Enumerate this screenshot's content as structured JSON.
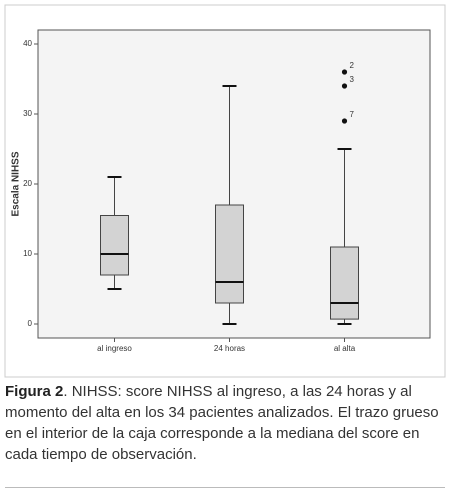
{
  "chart_data": {
    "type": "box",
    "y_label": "Escala NIHSS",
    "categories": [
      "al ingreso",
      "24 horas",
      "al alta"
    ],
    "boxes": [
      {
        "min": 5,
        "q1": 7,
        "median": 10,
        "q3": 15.5,
        "max": 21
      },
      {
        "min": 0,
        "q1": 3,
        "median": 6,
        "q3": 17,
        "max": 34
      },
      {
        "min": 0,
        "q1": 0.7,
        "median": 3,
        "q3": 11,
        "max": 25
      }
    ],
    "outliers": [
      {
        "category": "al alta",
        "value": 36,
        "label": "2"
      },
      {
        "category": "al alta",
        "value": 34,
        "label": "3"
      },
      {
        "category": "al alta",
        "value": 29,
        "label": "7"
      }
    ],
    "box_color": "#d3d3d3",
    "ylim": [
      -2,
      42
    ],
    "yticks": [
      0,
      10,
      20,
      30,
      40
    ]
  },
  "caption": {
    "label": "Figura 2",
    "text": ". NIHSS: score NIHSS al ingreso, a las 24 horas y al momento del alta en los 34 pacientes analizados. El trazo grueso en el interior de la caja corresponde a la mediana del score en cada tiempo de observación."
  }
}
